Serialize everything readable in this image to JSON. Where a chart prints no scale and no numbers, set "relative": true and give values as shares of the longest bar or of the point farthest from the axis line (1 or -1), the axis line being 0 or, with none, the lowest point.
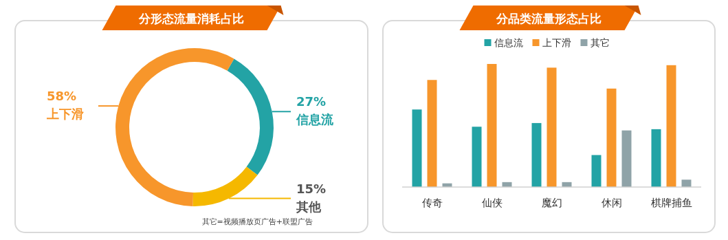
{
  "chart_data": [
    {
      "type": "donut",
      "title": "分形态流量消耗占比",
      "categories": [
        "信息流",
        "上下滑",
        "其他"
      ],
      "values": [
        27,
        58,
        15
      ],
      "colors": [
        "#23a3a5",
        "#f7962b",
        "#f5b800"
      ],
      "value_labels": [
        "27%",
        "58%",
        "15%"
      ],
      "annotations": [
        "其它=视频播放页广告+联盟广告"
      ]
    },
    {
      "type": "bar",
      "title": "分品类流量形态占比",
      "relative": true,
      "legend": "top",
      "categories": [
        "传奇",
        "仙侠",
        "魔幻",
        "休闲",
        "棋牌捕鱼"
      ],
      "series": [
        {
          "name": "信息流",
          "color": "#23a3a5",
          "values": [
            0.63,
            0.49,
            0.52,
            0.26,
            0.47
          ]
        },
        {
          "name": "上下滑",
          "color": "#f7962b",
          "values": [
            0.87,
            1.0,
            0.97,
            0.8,
            0.99
          ]
        },
        {
          "name": "其它",
          "color": "#8fa3a8",
          "values": [
            0.03,
            0.04,
            0.04,
            0.46,
            0.06
          ]
        }
      ]
    }
  ]
}
